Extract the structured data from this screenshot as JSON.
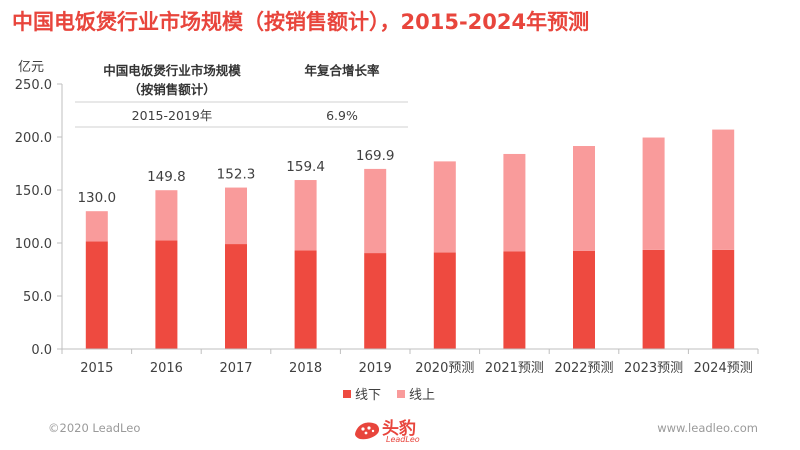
{
  "page": {
    "title": "中国电饭煲行业市场规模（按销售额计），2015-2024年预测",
    "footer_left": "©2020 LeadLeo",
    "footer_right": "www.leadleo.com",
    "logo_cn": "头豹",
    "logo_en": "LeadLeo"
  },
  "colors": {
    "title": "#e8453c",
    "offline": "#ee4a40",
    "online": "#f99b9b",
    "axis": "#bfbfbf",
    "text": "#404040"
  },
  "info_box": {
    "col1_header": "中国电饭煲行业市场规模\n（按销售额计）",
    "col2_header": "年复合增长率",
    "period": "2015-2019年",
    "cagr": "6.9%"
  },
  "chart_data": {
    "type": "bar",
    "stacked": true,
    "unit": "亿元",
    "categories": [
      "2015",
      "2016",
      "2017",
      "2018",
      "2019",
      "2020预测",
      "2021预测",
      "2022预测",
      "2023预测",
      "2024预测"
    ],
    "series": [
      {
        "name": "线下",
        "values": [
          101.5,
          102.5,
          99.0,
          93.0,
          90.5,
          91.0,
          92.0,
          92.5,
          93.5,
          93.5
        ]
      },
      {
        "name": "线上",
        "values": [
          28.5,
          47.3,
          53.3,
          66.4,
          79.4,
          86.0,
          92.0,
          99.0,
          106.0,
          113.5
        ]
      }
    ],
    "totals_labels": [
      "130.0",
      "149.8",
      "152.3",
      "159.4",
      "169.9",
      null,
      null,
      null,
      null,
      null
    ],
    "ylim": [
      0,
      250
    ],
    "yticks": [
      0,
      50,
      100,
      150,
      200,
      250
    ],
    "ytick_labels": [
      "0.0",
      "50.0",
      "100.0",
      "150.0",
      "200.0",
      "250.0"
    ],
    "legend_position": "bottom-center",
    "grid": false
  }
}
